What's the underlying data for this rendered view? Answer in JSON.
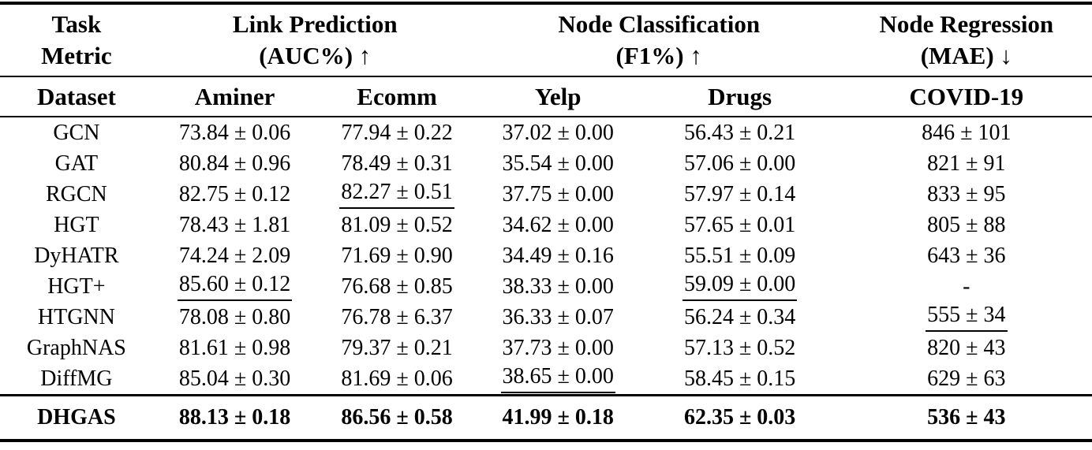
{
  "colors": {
    "text": "#000000",
    "background": "#ffffff",
    "rule": "#000000"
  },
  "table": {
    "corner": {
      "line1": "Task",
      "line2": "Metric"
    },
    "groups": [
      {
        "title": "Link Prediction",
        "metric": "(AUC%) ↑"
      },
      {
        "title": "Node Classification",
        "metric": "(F1%) ↑"
      },
      {
        "title": "Node Regression",
        "metric": "(MAE) ↓"
      }
    ],
    "dataset_header": "Dataset",
    "datasets": [
      "Aminer",
      "Ecomm",
      "Yelp",
      "Drugs",
      "COVID-19"
    ],
    "rows": [
      {
        "method": "GCN",
        "values": [
          "73.84 ± 0.06",
          "77.94 ± 0.22",
          "37.02 ± 0.00",
          "56.43 ± 0.21",
          "846 ± 101"
        ]
      },
      {
        "method": "GAT",
        "values": [
          "80.84 ± 0.96",
          "78.49 ± 0.31",
          "35.54 ± 0.00",
          "57.06 ± 0.00",
          "821 ± 91"
        ]
      },
      {
        "method": "RGCN",
        "values": [
          "82.75 ± 0.12",
          "82.27 ± 0.51",
          "37.75 ± 0.00",
          "57.97 ± 0.14",
          "833 ± 95"
        ]
      },
      {
        "method": "HGT",
        "values": [
          "78.43 ± 1.81",
          "81.09 ± 0.52",
          "34.62 ± 0.00",
          "57.65 ± 0.01",
          "805 ± 88"
        ]
      },
      {
        "method": "DyHATR",
        "values": [
          "74.24 ± 2.09",
          "71.69 ± 0.90",
          "34.49 ± 0.16",
          "55.51 ± 0.09",
          "643 ± 36"
        ]
      },
      {
        "method": "HGT+",
        "values": [
          "85.60 ± 0.12",
          "76.68 ± 0.85",
          "38.33 ± 0.00",
          "59.09 ± 0.00",
          "-"
        ]
      },
      {
        "method": "HTGNN",
        "values": [
          "78.08 ± 0.80",
          "76.78 ± 6.37",
          "36.33 ± 0.07",
          "56.24 ± 0.34",
          "555 ± 34"
        ]
      },
      {
        "method": "GraphNAS",
        "values": [
          "81.61 ± 0.98",
          "79.37 ± 0.21",
          "37.73 ± 0.00",
          "57.13 ± 0.52",
          "820 ± 43"
        ]
      },
      {
        "method": "DiffMG",
        "values": [
          "85.04 ± 0.30",
          "81.69 ± 0.06",
          "38.65 ± 0.00",
          "58.45 ± 0.15",
          "629 ± 63"
        ]
      }
    ],
    "second_best": [
      [
        2,
        1
      ],
      [
        5,
        0
      ],
      [
        5,
        3
      ],
      [
        6,
        4
      ],
      [
        8,
        2
      ]
    ],
    "best_row": {
      "method": "DHGAS",
      "values": [
        "88.13 ± 0.18",
        "86.56 ± 0.58",
        "41.99 ± 0.18",
        "62.35 ± 0.03",
        "536 ± 43"
      ]
    }
  }
}
